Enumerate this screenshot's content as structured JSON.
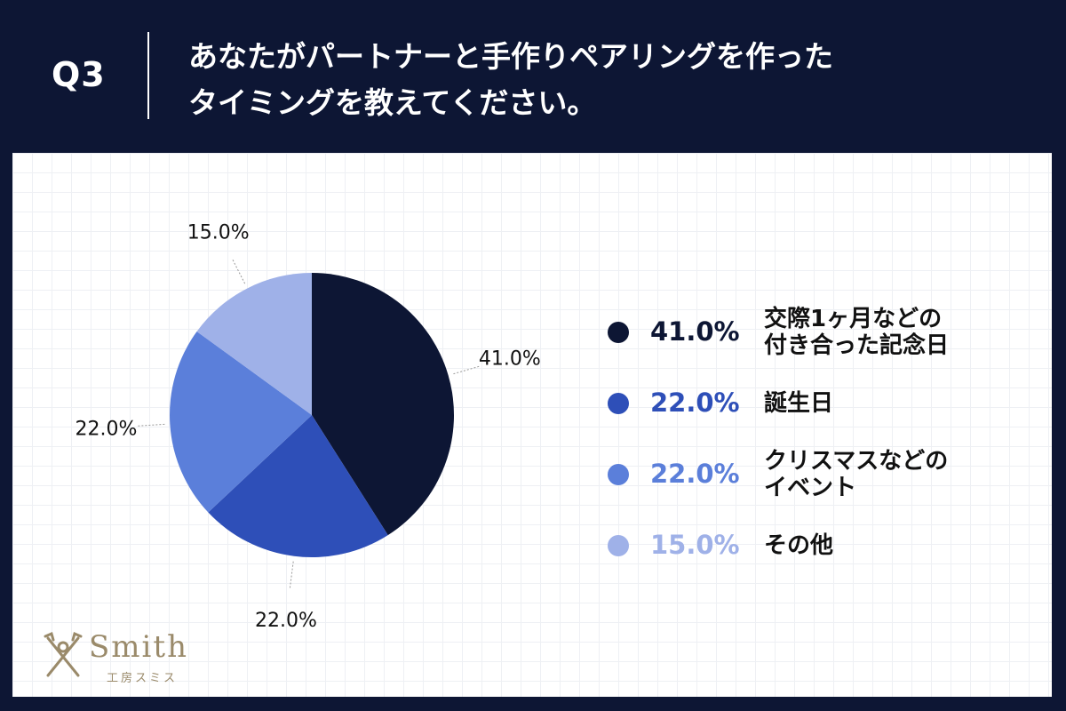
{
  "header": {
    "q_label": "Q3",
    "question_line1": "あなたがパートナーと手作りペアリングを作った",
    "question_line2": "タイミングを教えてください。"
  },
  "chart_data": {
    "type": "pie",
    "slices": [
      {
        "label": "交際1ヶ月などの付き合った記念日",
        "label_lines": [
          "交際1ヶ月などの",
          "付き合った記念日"
        ],
        "value": 41.0,
        "display": "41.0%",
        "color": "#0d1634",
        "pct_color": "#0d1634"
      },
      {
        "label": "誕生日",
        "label_lines": [
          "誕生日"
        ],
        "value": 22.0,
        "display": "22.0%",
        "color": "#2e4fb8",
        "pct_color": "#2e4fb8"
      },
      {
        "label": "クリスマスなどのイベント",
        "label_lines": [
          "クリスマスなどの",
          "イベント"
        ],
        "value": 22.0,
        "display": "22.0%",
        "color": "#5b7fda",
        "pct_color": "#5b7fda"
      },
      {
        "label": "その他",
        "label_lines": [
          "その他"
        ],
        "value": 15.0,
        "display": "15.0%",
        "color": "#9fb1e8",
        "pct_color": "#9fb1e8"
      }
    ],
    "start_angle": "12 o'clock",
    "direction": "clockwise",
    "legend_position": "right"
  },
  "logo": {
    "name": "Smith",
    "subtitle": "工房スミス",
    "icon": "crossed-tools-icon"
  }
}
